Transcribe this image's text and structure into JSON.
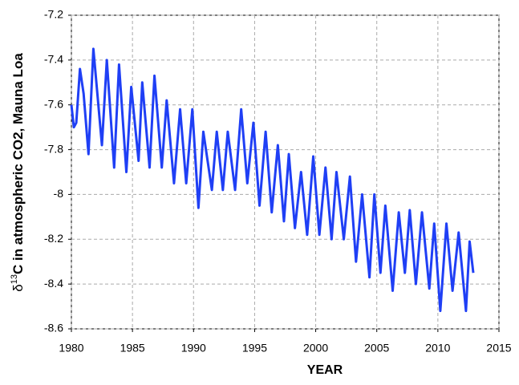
{
  "chart_data": {
    "type": "line",
    "x_label": "YEAR",
    "y_label": {
      "prefix": "δ",
      "sup": "13",
      "text": "C  in atmospheric CO2, Mauna Loa"
    },
    "x": [
      1980.0,
      1980.2,
      1980.4,
      1980.7,
      1981.0,
      1981.4,
      1981.8,
      1982.5,
      1982.9,
      1983.5,
      1983.9,
      1984.5,
      1984.9,
      1985.5,
      1985.8,
      1986.4,
      1986.8,
      1987.4,
      1987.8,
      1988.4,
      1988.9,
      1989.4,
      1989.9,
      1990.4,
      1990.8,
      1991.5,
      1991.9,
      1992.4,
      1992.8,
      1993.4,
      1993.9,
      1994.4,
      1994.9,
      1995.4,
      1995.9,
      1996.4,
      1996.9,
      1997.4,
      1997.8,
      1998.3,
      1998.8,
      1999.3,
      1999.8,
      2000.3,
      2000.8,
      2001.3,
      2001.7,
      2002.3,
      2002.8,
      2003.3,
      2003.8,
      2004.4,
      2004.8,
      2005.3,
      2005.7,
      2006.3,
      2006.8,
      2007.3,
      2007.7,
      2008.2,
      2008.7,
      2009.3,
      2009.7,
      2010.2,
      2010.7,
      2011.2,
      2011.7,
      2012.3,
      2012.6,
      2012.9
    ],
    "values": [
      -7.6,
      -7.7,
      -7.68,
      -7.44,
      -7.55,
      -7.82,
      -7.35,
      -7.78,
      -7.4,
      -7.88,
      -7.42,
      -7.9,
      -7.52,
      -7.85,
      -7.5,
      -7.88,
      -7.47,
      -7.88,
      -7.58,
      -7.95,
      -7.62,
      -7.95,
      -7.62,
      -8.06,
      -7.72,
      -7.98,
      -7.72,
      -7.98,
      -7.72,
      -7.98,
      -7.62,
      -7.95,
      -7.68,
      -8.05,
      -7.72,
      -8.08,
      -7.78,
      -8.12,
      -7.82,
      -8.15,
      -7.9,
      -8.18,
      -7.83,
      -8.18,
      -7.88,
      -8.2,
      -7.9,
      -8.2,
      -7.92,
      -8.3,
      -8.0,
      -8.37,
      -8.0,
      -8.35,
      -8.05,
      -8.43,
      -8.08,
      -8.35,
      -8.07,
      -8.4,
      -8.08,
      -8.42,
      -8.13,
      -8.52,
      -8.13,
      -8.43,
      -8.17,
      -8.52,
      -8.21,
      -8.35
    ],
    "color": "#1f3ff5",
    "xlim": [
      1980,
      2015
    ],
    "xticks": [
      1980,
      1985,
      1990,
      1995,
      2000,
      2005,
      2010,
      2015
    ],
    "ylim": [
      -8.6,
      -7.2
    ],
    "yticks": [
      -8.6,
      -8.4,
      -8.2,
      -8,
      -7.8,
      -7.6,
      -7.4,
      -7.2
    ],
    "grid": true
  }
}
